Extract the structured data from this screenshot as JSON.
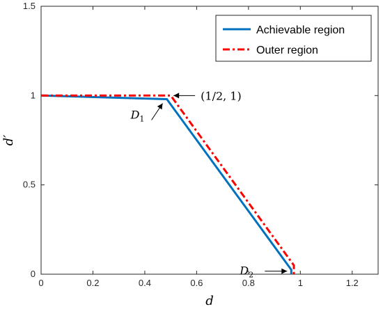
{
  "chart_data": {
    "type": "line",
    "xlabel": "d",
    "ylabel": "d′",
    "xlim": [
      0,
      1.3
    ],
    "ylim": [
      0,
      1.5
    ],
    "xticks": [
      0,
      0.2,
      0.4,
      0.6,
      0.8,
      1,
      1.2
    ],
    "xtick_labels": [
      "0",
      "0.2",
      "0.4",
      "0.6",
      "0.8",
      "1",
      "1.2"
    ],
    "yticks": [
      0,
      0.5,
      1,
      1.5
    ],
    "ytick_labels": [
      "0",
      "0.5",
      "1",
      "1.5"
    ],
    "grid": false,
    "legend_position": "top-right",
    "series": [
      {
        "name": "Achievable region",
        "color": "#0072BD",
        "style": "solid",
        "x": [
          0,
          0.485,
          0.965,
          0.965
        ],
        "y": [
          1.0,
          0.98,
          0.025,
          0
        ]
      },
      {
        "name": "Outer region",
        "color": "#FF0000",
        "style": "dash-dot",
        "x": [
          0,
          0.5,
          0.975,
          0.975
        ],
        "y": [
          1.0,
          1.0,
          0.05,
          0
        ]
      }
    ],
    "annotations": [
      {
        "id": "half_one",
        "text": "(1/2, 1)",
        "arrow_to": [
          0.5,
          1.0
        ]
      },
      {
        "id": "d1",
        "text_main": "D",
        "text_sub": "1",
        "arrow_to": [
          0.485,
          0.98
        ]
      },
      {
        "id": "d2",
        "text_main": "D",
        "text_sub": "2",
        "arrow_to": [
          0.965,
          0.025
        ]
      }
    ]
  }
}
